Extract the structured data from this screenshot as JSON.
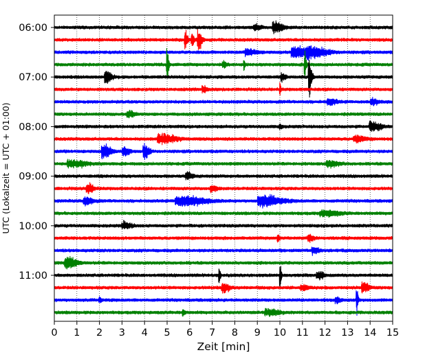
{
  "chart_data": {
    "type": "line",
    "title": "",
    "xlabel": "Zeit  [min]",
    "ylabel": "UTC (Lokalzeit = UTC + 01:00)",
    "xlim": [
      0,
      15
    ],
    "x_ticks": [
      "0",
      "1",
      "2",
      "3",
      "4",
      "5",
      "6",
      "7",
      "8",
      "9",
      "10",
      "11",
      "12",
      "13",
      "14",
      "15"
    ],
    "y_tick_labels": [
      "06:00",
      "07:00",
      "08:00",
      "09:00",
      "10:00",
      "11:00"
    ],
    "grid": {
      "vertical": true,
      "style": "dotted"
    },
    "colors": [
      "#000000",
      "#ff0000",
      "#0000ff",
      "#008000"
    ],
    "traces": [
      {
        "start": "06:00",
        "color": "#000000",
        "events": [
          {
            "t": 9.8,
            "amp": 0.55,
            "dur": 0.45
          },
          {
            "t": 8.9,
            "amp": 0.3,
            "dur": 0.3
          }
        ]
      },
      {
        "start": "06:15",
        "color": "#ff0000",
        "events": [
          {
            "t": 5.8,
            "amp": 0.9,
            "dur": 0.15
          },
          {
            "t": 6.4,
            "amp": 1.0,
            "dur": 0.2
          },
          {
            "t": 6.1,
            "amp": 0.6,
            "dur": 0.15
          }
        ]
      },
      {
        "start": "06:30",
        "color": "#0000ff",
        "events": [
          {
            "t": 10.7,
            "amp": 0.6,
            "dur": 0.7
          },
          {
            "t": 11.4,
            "amp": 0.55,
            "dur": 0.9
          },
          {
            "t": 8.6,
            "amp": 0.3,
            "dur": 0.5
          }
        ]
      },
      {
        "start": "06:45",
        "color": "#008000",
        "events": [
          {
            "t": 5.0,
            "amp": 1.8,
            "dur": 0.1
          },
          {
            "t": 8.4,
            "amp": 0.8,
            "dur": 0.06
          },
          {
            "t": 11.1,
            "amp": 1.3,
            "dur": 0.1
          },
          {
            "t": 7.5,
            "amp": 0.3,
            "dur": 0.2
          }
        ]
      },
      {
        "start": "07:00",
        "color": "#000000",
        "events": [
          {
            "t": 2.3,
            "amp": 0.7,
            "dur": 0.3
          },
          {
            "t": 11.3,
            "amp": 1.9,
            "dur": 0.15
          },
          {
            "t": 10.1,
            "amp": 0.35,
            "dur": 0.2
          }
        ]
      },
      {
        "start": "07:15",
        "color": "#ff0000",
        "events": [
          {
            "t": 10.0,
            "amp": 0.6,
            "dur": 0.06
          },
          {
            "t": 6.6,
            "amp": 0.35,
            "dur": 0.2
          }
        ]
      },
      {
        "start": "07:30",
        "color": "#0000ff",
        "events": [
          {
            "t": 12.2,
            "amp": 0.3,
            "dur": 0.4
          },
          {
            "t": 14.1,
            "amp": 0.3,
            "dur": 0.3
          }
        ]
      },
      {
        "start": "07:45",
        "color": "#008000",
        "events": [
          {
            "t": 3.3,
            "amp": 0.3,
            "dur": 0.3
          }
        ]
      },
      {
        "start": "08:00",
        "color": "#000000",
        "events": [
          {
            "t": 14.1,
            "amp": 0.45,
            "dur": 0.5
          },
          {
            "t": 10.0,
            "amp": 0.35,
            "dur": 0.1
          }
        ]
      },
      {
        "start": "08:15",
        "color": "#ff0000",
        "events": [
          {
            "t": 4.8,
            "amp": 0.45,
            "dur": 0.8
          },
          {
            "t": 13.4,
            "amp": 0.3,
            "dur": 0.5
          }
        ]
      },
      {
        "start": "08:30",
        "color": "#0000ff",
        "events": [
          {
            "t": 2.2,
            "amp": 0.7,
            "dur": 0.4
          },
          {
            "t": 3.1,
            "amp": 0.45,
            "dur": 0.3
          },
          {
            "t": 4.0,
            "amp": 0.8,
            "dur": 0.25
          }
        ]
      },
      {
        "start": "08:45",
        "color": "#008000",
        "events": [
          {
            "t": 0.8,
            "amp": 0.35,
            "dur": 0.8
          },
          {
            "t": 12.2,
            "amp": 0.3,
            "dur": 0.5
          }
        ]
      },
      {
        "start": "09:00",
        "color": "#000000",
        "events": [
          {
            "t": 5.9,
            "amp": 0.35,
            "dur": 0.3
          }
        ]
      },
      {
        "start": "09:15",
        "color": "#ff0000",
        "events": [
          {
            "t": 1.5,
            "amp": 0.5,
            "dur": 0.3
          },
          {
            "t": 7.0,
            "amp": 0.3,
            "dur": 0.3
          }
        ]
      },
      {
        "start": "09:30",
        "color": "#0000ff",
        "events": [
          {
            "t": 5.7,
            "amp": 0.5,
            "dur": 1.2
          },
          {
            "t": 9.3,
            "amp": 0.55,
            "dur": 1.0
          },
          {
            "t": 1.4,
            "amp": 0.4,
            "dur": 0.4
          }
        ]
      },
      {
        "start": "09:45",
        "color": "#008000",
        "events": [
          {
            "t": 12.0,
            "amp": 0.3,
            "dur": 0.8
          }
        ]
      },
      {
        "start": "10:00",
        "color": "#000000",
        "events": [
          {
            "t": 3.1,
            "amp": 0.35,
            "dur": 0.4
          }
        ]
      },
      {
        "start": "10:15",
        "color": "#ff0000",
        "events": [
          {
            "t": 9.9,
            "amp": 0.45,
            "dur": 0.1
          },
          {
            "t": 11.3,
            "amp": 0.3,
            "dur": 0.3
          }
        ]
      },
      {
        "start": "10:30",
        "color": "#0000ff",
        "events": [
          {
            "t": 11.5,
            "amp": 0.35,
            "dur": 0.3
          }
        ]
      },
      {
        "start": "10:45",
        "color": "#008000",
        "events": [
          {
            "t": 0.6,
            "amp": 0.6,
            "dur": 0.5
          }
        ]
      },
      {
        "start": "11:00",
        "color": "#000000",
        "events": [
          {
            "t": 7.3,
            "amp": 0.9,
            "dur": 0.08
          },
          {
            "t": 10.0,
            "amp": 1.2,
            "dur": 0.08
          },
          {
            "t": 11.7,
            "amp": 0.4,
            "dur": 0.3
          }
        ]
      },
      {
        "start": "11:15",
        "color": "#ff0000",
        "events": [
          {
            "t": 7.5,
            "amp": 0.5,
            "dur": 0.3
          },
          {
            "t": 13.7,
            "amp": 0.5,
            "dur": 0.3
          },
          {
            "t": 11.0,
            "amp": 0.3,
            "dur": 0.3
          }
        ]
      },
      {
        "start": "11:30",
        "color": "#0000ff",
        "events": [
          {
            "t": 13.4,
            "amp": 1.5,
            "dur": 0.08
          },
          {
            "t": 2.0,
            "amp": 0.35,
            "dur": 0.1
          },
          {
            "t": 12.5,
            "amp": 0.3,
            "dur": 0.2
          }
        ]
      },
      {
        "start": "11:45",
        "color": "#008000",
        "events": [
          {
            "t": 5.7,
            "amp": 0.45,
            "dur": 0.1
          },
          {
            "t": 9.5,
            "amp": 0.3,
            "dur": 0.6
          }
        ]
      }
    ]
  }
}
